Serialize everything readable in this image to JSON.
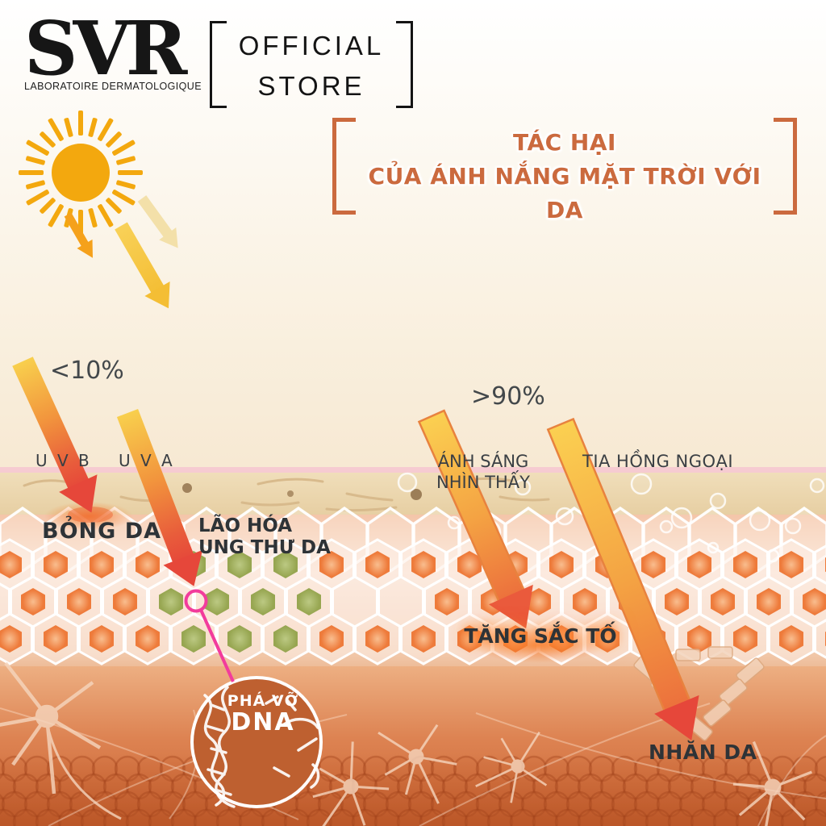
{
  "header": {
    "logo": {
      "name": "SVR",
      "subtitle": "LABORATOIRE DERMATOLOGIQUE"
    },
    "badge": {
      "line1": "OFFICIAL",
      "line2": "STORE"
    }
  },
  "title": {
    "line1": "TÁC HẠI",
    "line2": "CỦA ÁNH NẮNG MẶT TRỜI VỚI DA"
  },
  "labels": {
    "uvb_percent": "<10%",
    "visible_percent": ">90%",
    "uvb": "U V B",
    "uva": "U V A",
    "visible_line1": "ÁNH SÁNG",
    "visible_line2": "NHÌN THẤY",
    "infrared": "TIA HỒNG NGOẠI",
    "burn": "BỎNG DA",
    "aging_line1": "LÃO HÓA",
    "aging_line2": "UNG THƯ DA",
    "pigment": "TĂNG SẮC TỐ",
    "wrinkle": "NHĂN DA",
    "dna_line1": "PHÁ VỠ",
    "dna_line2": "DNA"
  },
  "colors": {
    "accent_orange": "#CB6A3E",
    "sun_yellow": "#F3A80E",
    "arrow_yellow": "#F8CF4D",
    "arrow_red": "#E6473A",
    "skin_tan": "#EBD5AC",
    "epidermis_pink": "#F4C5A9",
    "cell_orange": "#EE7B3B",
    "cell_green": "#9BAA56",
    "dermis_orange": "#C96434",
    "marker_pink": "#F23C9C",
    "text_dark": "#2E3337",
    "bubble_white": "#FFFFFF"
  }
}
